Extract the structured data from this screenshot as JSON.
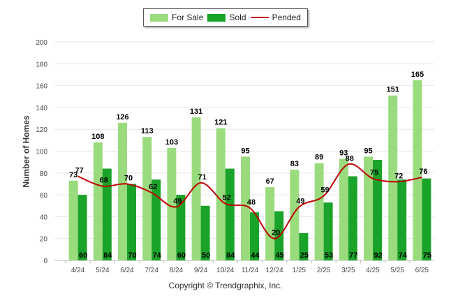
{
  "chart_data": {
    "type": "bar",
    "categories": [
      "4/24",
      "5/24",
      "6/24",
      "7/24",
      "8/24",
      "9/24",
      "10/24",
      "11/24",
      "12/24",
      "1/25",
      "2/25",
      "3/25",
      "4/25",
      "5/25",
      "6/25"
    ],
    "series": [
      {
        "name": "For Sale",
        "type": "bar",
        "color": "#9adb7e",
        "values": [
          73,
          108,
          126,
          113,
          103,
          131,
          121,
          95,
          67,
          83,
          89,
          93,
          95,
          151,
          165
        ]
      },
      {
        "name": "Sold",
        "type": "bar",
        "color": "#1aa329",
        "values": [
          60,
          84,
          70,
          74,
          60,
          50,
          84,
          44,
          45,
          25,
          53,
          77,
          92,
          74,
          75
        ]
      },
      {
        "name": "Pended",
        "type": "line",
        "color": "#c00000",
        "values": [
          77,
          68,
          70,
          62,
          49,
          71,
          52,
          48,
          20,
          49,
          59,
          88,
          75,
          72,
          76
        ]
      }
    ],
    "ylabel": "Number of Homes",
    "ylim": [
      0,
      200
    ],
    "yticks": [
      0,
      20,
      40,
      60,
      80,
      100,
      120,
      140,
      160,
      180,
      200
    ],
    "grid": true,
    "legend": "top-center"
  },
  "legend": {
    "for_sale": "For Sale",
    "sold": "Sold",
    "pended": "Pended"
  },
  "footer": {
    "copyright": "Copyright © Trendgraphix, Inc."
  }
}
